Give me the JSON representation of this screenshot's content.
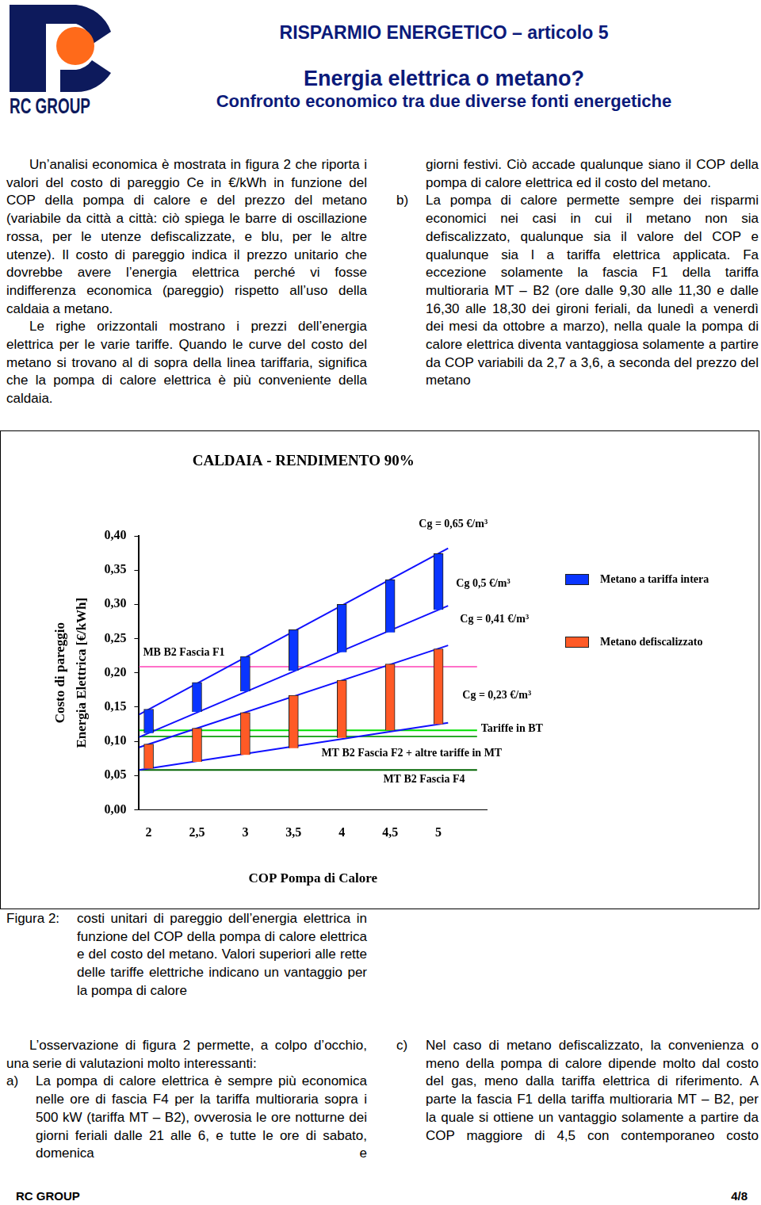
{
  "header": {
    "logo_text": "RC GROUP",
    "kicker": "RISPARMIO ENERGETICO – articolo 5",
    "title": "Energia elettrica o metano?",
    "subtitle": "Confronto economico tra due diverse fonti energetiche"
  },
  "intro": {
    "left": [
      "Un’analisi economica è mostrata in figura 2 che riporta i valori del costo di pareggio Ce in €/kWh in funzione del COP della pompa di calore e del prezzo del metano (variabile da città a città: ciò spiega le barre di oscillazione rossa, per le utenze defiscalizzate, e blu, per le altre utenze). Il costo di pareggio indica il prezzo unitario che dovrebbe avere l’energia elettrica perché vi fosse indifferenza economica (pareggio) rispetto all’uso della caldaia a metano.",
      "Le righe orizzontali mostrano i prezzi dell’energia elettrica per le varie tariffe. Quando le curve del costo del metano si trovano al di sopra della linea tariffaria, significa che la pompa di calore elettrica è più conveniente della caldaia."
    ],
    "right": {
      "continuation": "giorni festivi. Ciò accade qualunque siano il COP della pompa di calore elettrica ed il costo del metano.",
      "items": [
        {
          "label": "b)",
          "text": "La pompa di calore permette sempre dei risparmi economici nei casi in cui il metano non sia defiscalizzato, qualunque sia il valore del COP e qualunque sia l a tariffa elettrica applicata. Fa eccezione solamente la fascia F1 della tariffa multioraria MT – B2 (ore dalle 9,30 alle 11,30 e dalle 16,30 alle 18,30 dei gironi feriali, da lunedì a venerdì dei mesi da ottobre a marzo), nella quale la pompa di calore elettrica diventa vantaggiosa solamente a partire da COP variabili da 2,7 a 3,6, a seconda del prezzo del metano"
        }
      ]
    }
  },
  "chart_data": {
    "type": "bar",
    "title": "CALDAIA - RENDIMENTO 90%",
    "x_label": "COP Pompa di Calore",
    "y_label": [
      "Costo di pareggio",
      "Energia Elettrica [€/kWh]"
    ],
    "xlim": [
      1.9,
      5.5
    ],
    "xticks": [
      2,
      {
        "value": 2.5,
        "label": "2,5"
      },
      3,
      {
        "value": 3.5,
        "label": "3,5"
      },
      4,
      {
        "value": 4.5,
        "label": "4,5"
      },
      5
    ],
    "ylim": [
      0,
      0.4
    ],
    "yticks": [
      {
        "value": 0,
        "label": "0,00"
      },
      {
        "value": 0.05,
        "label": "0,05"
      },
      {
        "value": 0.1,
        "label": "0,10"
      },
      {
        "value": 0.15,
        "label": "0,15"
      },
      {
        "value": 0.2,
        "label": "0,20"
      },
      {
        "value": 0.25,
        "label": "0,25"
      },
      {
        "value": 0.3,
        "label": "0,30"
      },
      {
        "value": 0.35,
        "label": "0,35"
      },
      {
        "value": 0.4,
        "label": "0,40"
      }
    ],
    "grid": false,
    "legend": "right",
    "series": [
      {
        "name": "Metano a tariffa intera",
        "type": "bar",
        "color": "#0a35ff",
        "x": [
          2,
          2.5,
          3,
          3.5,
          4,
          4.5,
          5
        ],
        "values": [
          [
            0.112,
            0.147
          ],
          [
            0.143,
            0.186
          ],
          [
            0.173,
            0.224
          ],
          [
            0.203,
            0.263
          ],
          [
            0.23,
            0.3
          ],
          [
            0.259,
            0.336
          ],
          [
            0.292,
            0.374
          ]
        ]
      },
      {
        "name": "Metano defiscalizzato",
        "type": "bar",
        "color": "#ff5a26",
        "x": [
          2,
          2.5,
          3,
          3.5,
          4,
          4.5,
          5
        ],
        "values": [
          [
            0.06,
            0.096
          ],
          [
            0.07,
            0.119
          ],
          [
            0.08,
            0.142
          ],
          [
            0.09,
            0.167
          ],
          [
            0.105,
            0.189
          ],
          [
            0.116,
            0.213
          ],
          [
            0.125,
            0.235
          ]
        ]
      },
      {
        "name": "Cg = 0,65 €/m³",
        "type": "line",
        "color": "#1010ff",
        "x": [
          1.9,
          5.1
        ],
        "values": [
          0.139,
          0.382
        ]
      },
      {
        "name": "Cg 0,5 €/m³",
        "type": "line",
        "color": "#1010ff",
        "x": [
          1.9,
          5.1
        ],
        "values": [
          0.106,
          0.298
        ]
      },
      {
        "name": "Cg = 0,41 €/m³",
        "type": "line",
        "color": "#1010ff",
        "x": [
          1.9,
          5.1
        ],
        "values": [
          0.091,
          0.24
        ]
      },
      {
        "name": "Cg = 0,23 €/m³",
        "type": "line",
        "color": "#1010ff",
        "x": [
          1.9,
          5.1
        ],
        "values": [
          0.058,
          0.127
        ]
      },
      {
        "name": "MB B2 Fascia F1",
        "type": "line",
        "color": "#ff70c8",
        "x": [
          1.9,
          5.4
        ],
        "values": [
          0.209,
          0.209
        ]
      },
      {
        "name": "Tariffe in BT",
        "type": "line",
        "color": "#00e000",
        "x": [
          1.9,
          5.4
        ],
        "values": [
          0.116,
          0.116
        ]
      },
      {
        "name": "MT B2 Fascia F2 + altre tariffe in MT",
        "type": "line",
        "color": "#2aa82a",
        "x": [
          1.9,
          5.4
        ],
        "values": [
          0.107,
          0.107
        ]
      },
      {
        "name": "MT B2 Fascia F4",
        "type": "line",
        "color": "#006400",
        "x": [
          1.9,
          5.4
        ],
        "values": [
          0.058,
          0.058
        ]
      }
    ]
  },
  "caption": {
    "label": "Figura 2:",
    "text": "costi unitari di pareggio dell’energia elettrica in funzione del COP della pompa di calore elettrica e del costo del metano. Valori superiori alle rette delle tariffe elettriche indicano un vantaggio per la pompa di calore"
  },
  "discussion": {
    "left": {
      "paragraph": "L’osservazione di figura 2 permette, a colpo d’occhio, una serie di valutazioni molto interessanti:",
      "items": [
        {
          "label": "a)",
          "text": "La pompa di calore elettrica è sempre più economica nelle ore di fascia F4 per la tariffa multioraria sopra i 500 kW (tariffa MT – B2), ovverosia le ore notturne dei giorni feriali dalle 21 alle 6, e tutte le ore di sabato, domenica e"
        }
      ]
    },
    "right": {
      "items": [
        {
          "label": "c)",
          "text": "Nel caso di metano defiscalizzato, la convenienza o meno della pompa di calore dipende molto dal costo del gas, meno dalla tariffa elettrica di riferimento. A parte la fascia F1 della tariffa multioraria MT – B2, per la quale si ottiene un vantaggio solamente a partire da COP maggiore di 4,5 con contemporaneo costo"
        }
      ]
    }
  },
  "footer": {
    "left": "RC GROUP",
    "page": "4/8"
  }
}
